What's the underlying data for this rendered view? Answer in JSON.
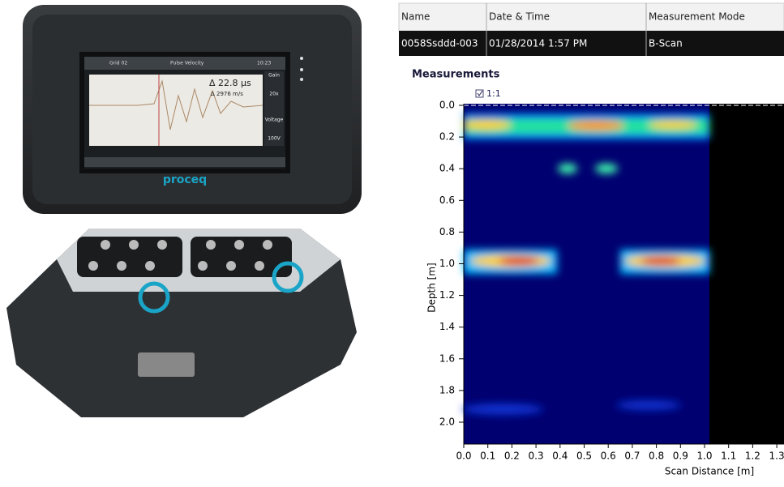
{
  "device": {
    "screen": {
      "grid": "Grid 02",
      "mode": "Pulse Velocity",
      "time": "10:23",
      "delta_time": "Δ 22.8 µs",
      "delta_velocity": "Δ 2976 m/s",
      "gain_label": "Gain",
      "gain": "20x",
      "voltage_label": "Voltage",
      "voltage": "100V"
    },
    "brand": "proceq"
  },
  "table": {
    "headers": [
      "Name",
      "Date & Time",
      "Measurement Mode"
    ],
    "rows": [
      [
        "0058Ssddd-003",
        "01/28/2014 1:57 PM",
        "B-Scan"
      ]
    ]
  },
  "panel": {
    "title": "Measurements",
    "checkbox": "1:1",
    "plot": {
      "y_label": "Depth [m]",
      "x_label": "Scan Distance [m]",
      "yticks": [
        "0.0",
        "0.2",
        "0.4",
        "0.6",
        "0.8",
        "1.0",
        "1.2",
        "1.4",
        "1.6",
        "1.8",
        "2.0"
      ],
      "xticks": [
        "0.0",
        "0.1",
        "0.2",
        "0.3",
        "0.4",
        "0.5",
        "0.6",
        "0.7",
        "0.8",
        "0.9",
        "1.0",
        "1.1",
        "1.2",
        "1.3"
      ]
    }
  }
}
